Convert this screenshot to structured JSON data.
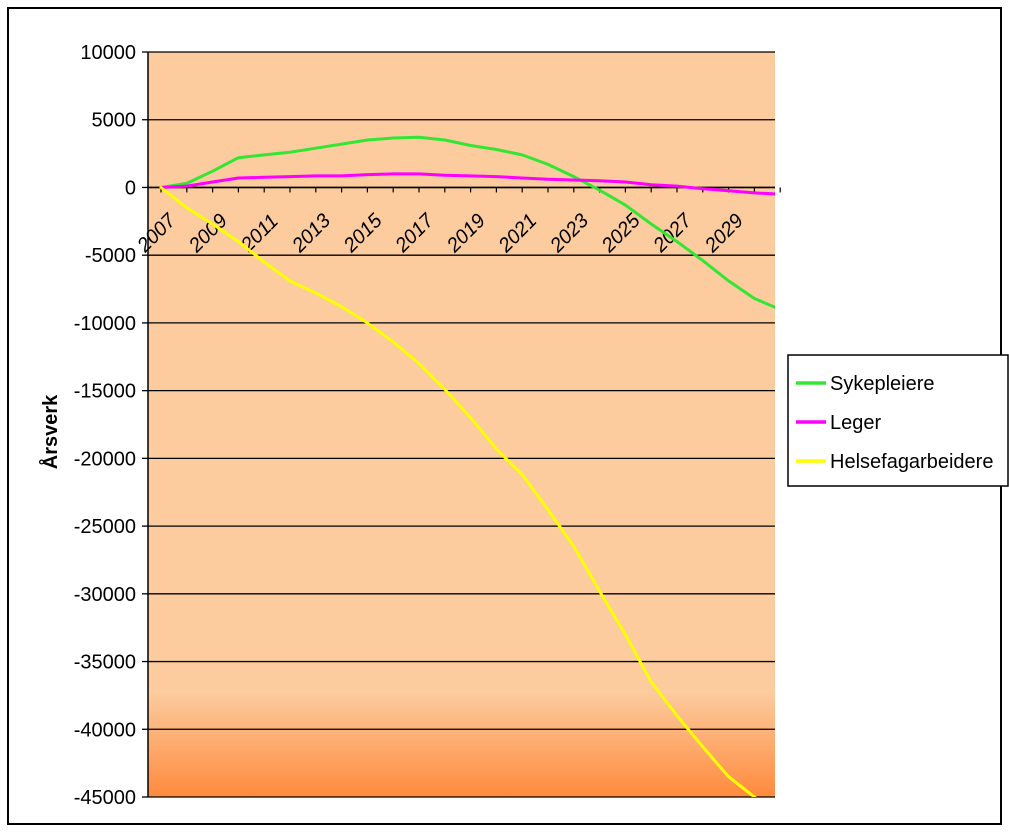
{
  "chart_data": {
    "type": "line",
    "title": "",
    "xlabel": "",
    "ylabel": "Årsverk",
    "ylim": [
      -45000,
      10000
    ],
    "yticks": [
      10000,
      5000,
      0,
      -5000,
      -10000,
      -15000,
      -20000,
      -25000,
      -30000,
      -35000,
      -40000,
      -45000
    ],
    "ytick_labels": [
      "10000",
      "5000",
      "0",
      "-5000",
      "-10000",
      "-15000",
      "-20000",
      "-25000",
      "-30000",
      "-35000",
      "-40000",
      "-45000"
    ],
    "x": [
      2007,
      2008,
      2009,
      2010,
      2011,
      2012,
      2013,
      2014,
      2015,
      2016,
      2017,
      2018,
      2019,
      2020,
      2021,
      2022,
      2023,
      2024,
      2025,
      2026,
      2027,
      2028,
      2029,
      2030,
      2031
    ],
    "xtick_labels": [
      "2007",
      "2009",
      "2011",
      "2013",
      "2015",
      "2017",
      "2019",
      "2021",
      "2023",
      "2025",
      "2027",
      "2029"
    ],
    "grid": true,
    "legend_position": "right",
    "colors": {
      "plot_background": "#FCCB9E",
      "plot_background_bottom": "#FF8A3D",
      "gridline": "#000000"
    },
    "series": [
      {
        "name": "Sykepleiere",
        "color": "#33E633",
        "values": [
          0,
          300,
          1200,
          2200,
          2400,
          2600,
          2900,
          3200,
          3500,
          3650,
          3700,
          3500,
          3100,
          2800,
          2400,
          1700,
          800,
          -200,
          -1300,
          -2700,
          -4000,
          -5400,
          -6900,
          -8200,
          -9000
        ]
      },
      {
        "name": "Leger",
        "color": "#FF00FF",
        "values": [
          0,
          100,
          400,
          700,
          750,
          800,
          850,
          850,
          950,
          1000,
          1000,
          900,
          850,
          800,
          700,
          600,
          550,
          500,
          400,
          200,
          100,
          -100,
          -250,
          -400,
          -500
        ]
      },
      {
        "name": "Helsefagarbeidere",
        "color": "#FFFF00",
        "values": [
          0,
          -1500,
          -2700,
          -4000,
          -5500,
          -6900,
          -7800,
          -8800,
          -10000,
          -11400,
          -13000,
          -14900,
          -17000,
          -19300,
          -21200,
          -23800,
          -26500,
          -29800,
          -33000,
          -36500,
          -39000,
          -41300,
          -43500,
          -45000,
          -46500
        ]
      }
    ]
  }
}
